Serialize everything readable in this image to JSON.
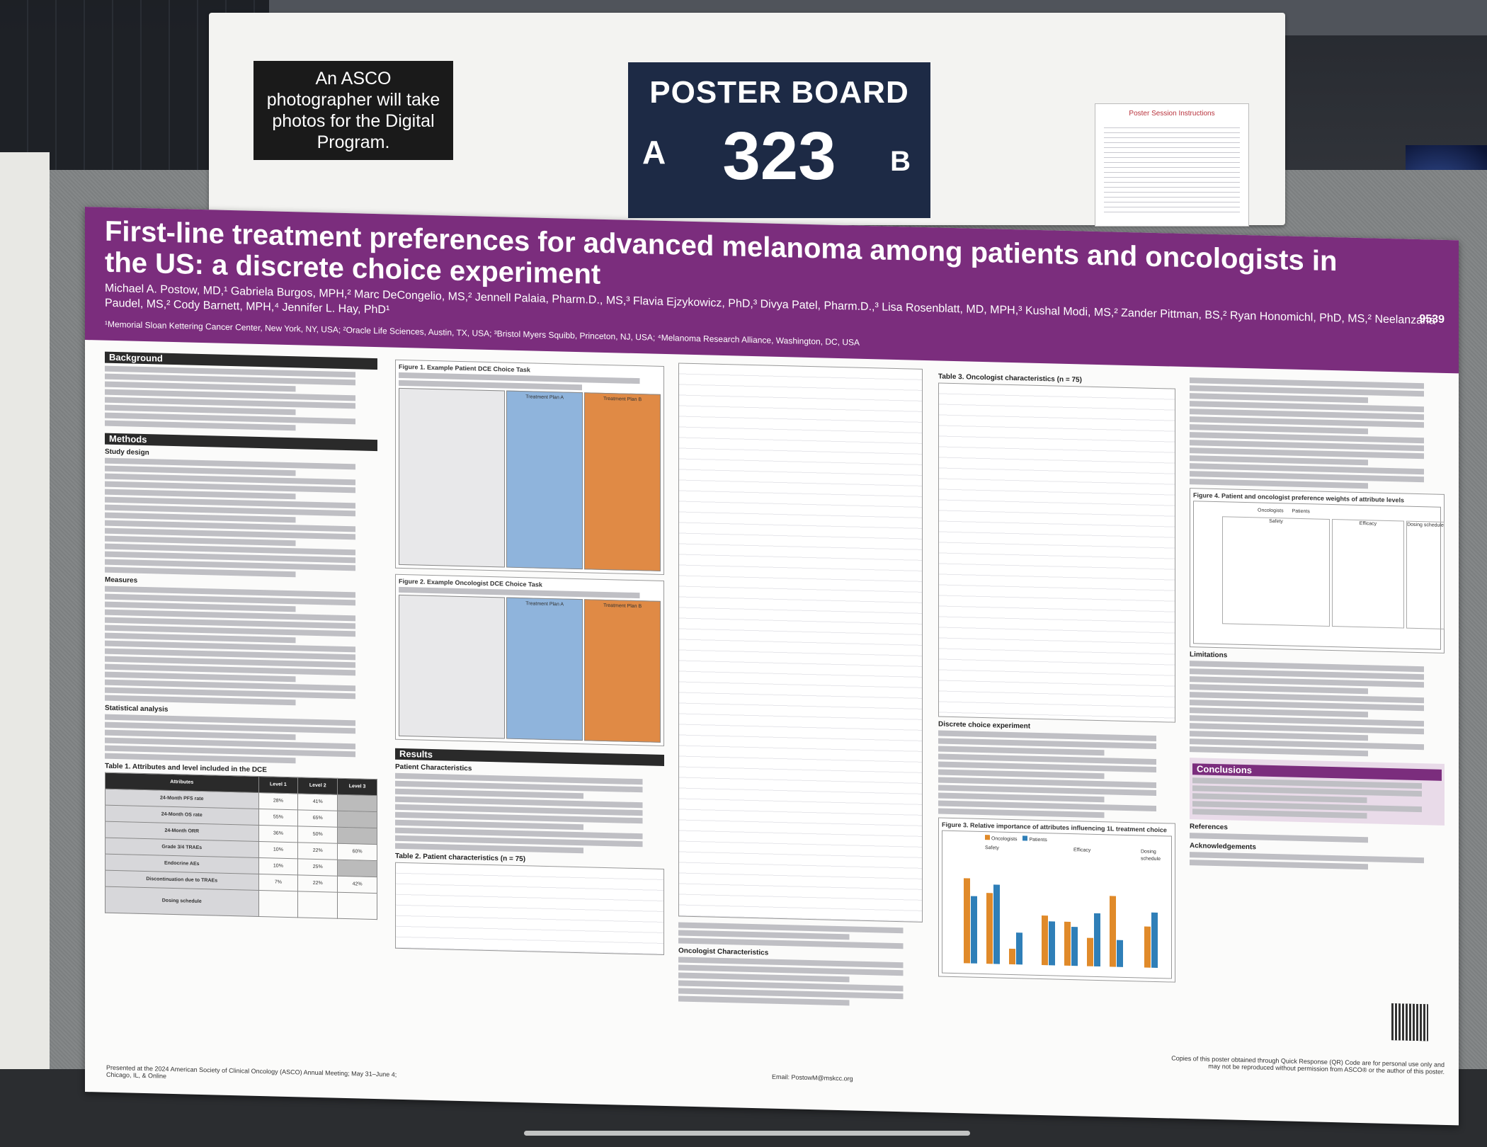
{
  "signage": {
    "photo_notice": "An ASCO photographer will take photos for the Digital Program.",
    "board_title": "POSTER BOARD",
    "board_number": "323",
    "side_a": "A",
    "side_b": "B",
    "instructions_title": "Poster Session Instructions"
  },
  "poster": {
    "title": "First-line treatment preferences for advanced melanoma among patients and oncologists in the US: a discrete choice experiment",
    "authors": "Michael A. Postow, MD,¹ Gabriela Burgos, MPH,² Marc DeCongelio, MS,² Jennell Palaia, Pharm.D., MS,³ Flavia Ejzykowicz, PhD,³ Divya Patel, Pharm.D.,³ Lisa Rosenblatt, MD, MPH,³ Kushal Modi, MS,² Zander Pittman, BS,² Ryan Honomichl, PhD, MS,² Neelanzana Paudel, MS,² Cody Barnett, MPH,⁴ Jennifer L. Hay, PhD¹",
    "affiliations": "¹Memorial Sloan Kettering Cancer Center, New York, NY, USA; ²Oracle Life Sciences, Austin, TX, USA; ³Bristol Myers Squibb, Princeton, NJ, USA; ⁴Melanoma Research Alliance, Washington, DC, USA",
    "poster_number": "9539",
    "sections": {
      "background": "Background",
      "methods": "Methods",
      "study_design": "Study design",
      "measures": "Measures",
      "statistical_analysis": "Statistical analysis",
      "results": "Results",
      "patient_characteristics": "Patient Characteristics",
      "oncologist_characteristics": "Oncologist Characteristics",
      "discrete_choice": "Discrete choice experiment",
      "limitations": "Limitations",
      "conclusions": "Conclusions",
      "references": "References",
      "acknowledgements": "Acknowledgements"
    },
    "figures": {
      "fig1": "Figure 1. Example Patient DCE Choice Task",
      "fig2": "Figure 2. Example Oncologist DCE Choice Task",
      "fig3": "Figure 3. Relative importance of attributes influencing 1L treatment choice",
      "fig4": "Figure 4. Patient and oncologist preference weights of attribute levels"
    },
    "tables": {
      "table1": "Table 1. Attributes and level included in the DCE",
      "table2": "Table 2. Patient characteristics (n = 75)",
      "table3": "Table 3. Oncologist characteristics (n = 75)"
    },
    "table1_header": [
      "Attributes",
      "Level 1",
      "Level 2",
      "Level 3"
    ],
    "table1_rows": [
      [
        "24-Month PFS rate",
        "28%",
        "41%",
        ""
      ],
      [
        "24-Month OS rate",
        "55%",
        "65%",
        ""
      ],
      [
        "24-Month ORR",
        "36%",
        "50%",
        ""
      ],
      [
        "Grade 3/4 TRAEs",
        "10%",
        "22%",
        "60%"
      ],
      [
        "Endocrine AEs",
        "10%",
        "25%",
        ""
      ],
      [
        "Discontinuation due to TRAEs",
        "7%",
        "22%",
        "42%"
      ],
      [
        "Dosing schedule",
        "",
        "",
        ""
      ]
    ],
    "choice_headers": [
      "Treatment Plan A",
      "Treatment Plan B"
    ],
    "fig3_legend": [
      "Oncologists",
      "Patients"
    ],
    "fig3_groups": [
      "Safety",
      "Efficacy",
      "Dosing schedule"
    ],
    "fig4_legend": [
      "Oncologists",
      "Patients"
    ],
    "fig4_groups": [
      "Safety",
      "Efficacy",
      "Dosing schedule"
    ],
    "email": "Email: PostowM@mskcc.org",
    "presented_at": "Presented at the 2024 American Society of Clinical Oncology (ASCO) Annual Meeting; May 31–June 4; Chicago, IL, & Online",
    "copies_note": "Copies of this poster obtained through Quick Response (QR) Code are for personal use only and may not be reproduced without permission from ASCO® or the author of this poster."
  }
}
